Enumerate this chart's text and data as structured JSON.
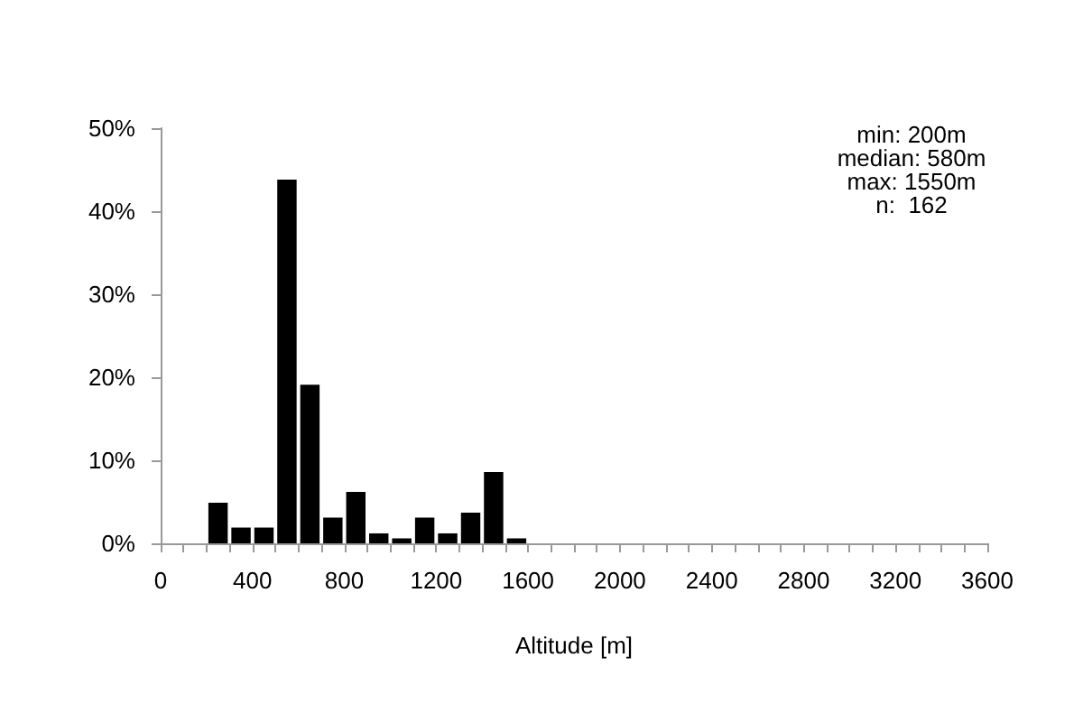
{
  "chart_data": {
    "type": "histogram",
    "xlabel": "Altitude [m]",
    "bins": [
      200,
      300,
      400,
      500,
      600,
      700,
      800,
      900,
      1000,
      1100,
      1200,
      1300,
      1400,
      1500,
      1600
    ],
    "values": [
      4.9,
      1.9,
      1.9,
      43.8,
      19.1,
      3.1,
      6.2,
      1.2,
      0.6,
      3.1,
      1.2,
      3.7,
      8.6,
      0.6
    ],
    "color": "#000000",
    "xlim": [
      0,
      3600
    ],
    "xticks": [
      0,
      {
        "value": 100,
        "label": null
      },
      {
        "value": 200,
        "label": null
      },
      {
        "value": 300,
        "label": null
      },
      400,
      {
        "value": 500,
        "label": null
      },
      {
        "value": 600,
        "label": null
      },
      {
        "value": 700,
        "label": null
      },
      800,
      {
        "value": 900,
        "label": null
      },
      {
        "value": 1000,
        "label": null
      },
      {
        "value": 1100,
        "label": null
      },
      1200,
      {
        "value": 1300,
        "label": null
      },
      {
        "value": 1400,
        "label": null
      },
      {
        "value": 1500,
        "label": null
      },
      1600,
      {
        "value": 1700,
        "label": null
      },
      {
        "value": 1800,
        "label": null
      },
      {
        "value": 1900,
        "label": null
      },
      2000,
      {
        "value": 2100,
        "label": null
      },
      {
        "value": 2200,
        "label": null
      },
      {
        "value": 2300,
        "label": null
      },
      2400,
      {
        "value": 2500,
        "label": null
      },
      {
        "value": 2600,
        "label": null
      },
      {
        "value": 2700,
        "label": null
      },
      2800,
      {
        "value": 2900,
        "label": null
      },
      {
        "value": 3000,
        "label": null
      },
      {
        "value": 3100,
        "label": null
      },
      3200,
      {
        "value": 3300,
        "label": null
      },
      {
        "value": 3400,
        "label": null
      },
      {
        "value": 3500,
        "label": null
      },
      3600
    ],
    "ylim": [
      0,
      50
    ],
    "yticks": [
      {
        "value": 0,
        "label": "0%"
      },
      {
        "value": 10,
        "label": "10%"
      },
      {
        "value": 20,
        "label": "20%"
      },
      {
        "value": 30,
        "label": "30%"
      },
      {
        "value": 40,
        "label": "40%"
      },
      {
        "value": 50,
        "label": "50%"
      }
    ],
    "grid": false,
    "annotations": [
      "min: 200m",
      "median: 580m",
      "max: 1550m",
      "n:  162"
    ]
  }
}
